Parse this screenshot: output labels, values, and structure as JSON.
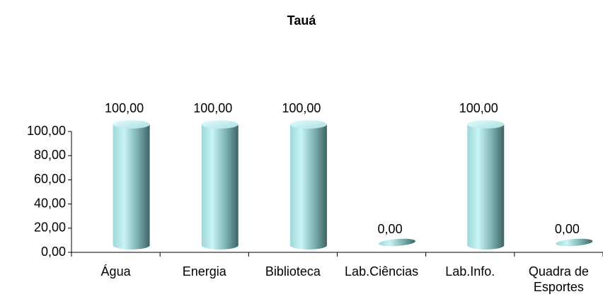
{
  "chart_data": {
    "type": "bar",
    "title": "Tauá",
    "categories": [
      "Água",
      "Energia",
      "Biblioteca",
      "Lab.Ciências",
      "Lab.Info.",
      "Quadra de Esportes"
    ],
    "values": [
      100,
      100,
      100,
      0,
      100,
      0
    ],
    "value_labels": [
      "100,00",
      "100,00",
      "100,00",
      "0,00",
      "100,00",
      "0,00"
    ],
    "color": "#8fd3d3",
    "ylim": [
      0,
      100
    ],
    "yticks": [
      {
        "value": 0,
        "label": "0,00"
      },
      {
        "value": 20,
        "label": "20,00"
      },
      {
        "value": 40,
        "label": "40,00"
      },
      {
        "value": 60,
        "label": "60,00"
      },
      {
        "value": 80,
        "label": "80,00"
      },
      {
        "value": 100,
        "label": "100,00"
      }
    ],
    "grid": false
  }
}
